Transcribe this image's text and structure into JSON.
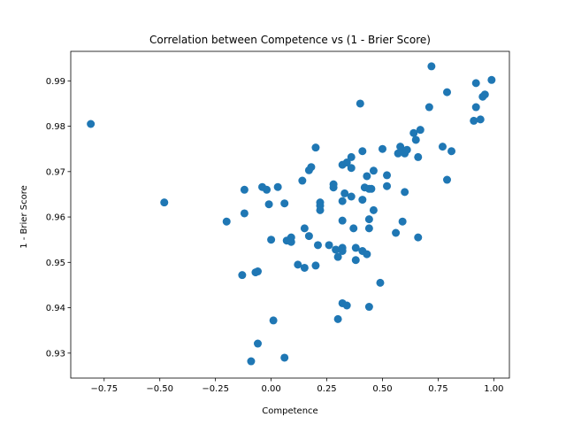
{
  "chart_data": {
    "type": "scatter",
    "title": "Correlation between Competence vs (1 - Brier Score)",
    "xlabel": "Competence",
    "ylabel": "1 - Brier Score",
    "xlim": [
      -0.9,
      1.07
    ],
    "ylim": [
      0.9245,
      0.9965
    ],
    "xticks": [
      -0.75,
      -0.5,
      -0.25,
      0.0,
      0.25,
      0.5,
      0.75,
      1.0
    ],
    "xtick_labels": [
      "−0.75",
      "−0.50",
      "−0.25",
      "0.00",
      "0.25",
      "0.50",
      "0.75",
      "1.00"
    ],
    "yticks": [
      0.93,
      0.94,
      0.95,
      0.96,
      0.97,
      0.98,
      0.99
    ],
    "ytick_labels": [
      "0.93",
      "0.94",
      "0.95",
      "0.96",
      "0.97",
      "0.98",
      "0.99"
    ],
    "grid": false,
    "marker_color": "#1f77b4",
    "series": [
      {
        "points": [
          [
            -0.81,
            0.9805
          ],
          [
            -0.48,
            0.9632
          ],
          [
            -0.2,
            0.959
          ],
          [
            -0.12,
            0.9608
          ],
          [
            -0.12,
            0.966
          ],
          [
            -0.13,
            0.9472
          ],
          [
            -0.07,
            0.9478
          ],
          [
            -0.06,
            0.948
          ],
          [
            -0.09,
            0.9282
          ],
          [
            -0.06,
            0.9321
          ],
          [
            -0.04,
            0.9666
          ],
          [
            -0.02,
            0.966
          ],
          [
            0.03,
            0.9666
          ],
          [
            0.06,
            0.963
          ],
          [
            -0.01,
            0.9628
          ],
          [
            0.0,
            0.955
          ],
          [
            0.01,
            0.9372
          ],
          [
            0.06,
            0.929
          ],
          [
            0.07,
            0.9548
          ],
          [
            0.09,
            0.9555
          ],
          [
            0.09,
            0.9545
          ],
          [
            0.12,
            0.9495
          ],
          [
            0.15,
            0.9488
          ],
          [
            0.14,
            0.968
          ],
          [
            0.15,
            0.9575
          ],
          [
            0.17,
            0.9703
          ],
          [
            0.18,
            0.971
          ],
          [
            0.2,
            0.9753
          ],
          [
            0.17,
            0.9558
          ],
          [
            0.2,
            0.9493
          ],
          [
            0.21,
            0.9538
          ],
          [
            0.22,
            0.9632
          ],
          [
            0.22,
            0.9625
          ],
          [
            0.22,
            0.9615
          ],
          [
            0.26,
            0.9538
          ],
          [
            0.28,
            0.9665
          ],
          [
            0.28,
            0.9672
          ],
          [
            0.3,
            0.9512
          ],
          [
            0.29,
            0.9528
          ],
          [
            0.3,
            0.9375
          ],
          [
            0.32,
            0.9715
          ],
          [
            0.34,
            0.972
          ],
          [
            0.36,
            0.9732
          ],
          [
            0.36,
            0.9708
          ],
          [
            0.33,
            0.9652
          ],
          [
            0.32,
            0.9635
          ],
          [
            0.32,
            0.9592
          ],
          [
            0.32,
            0.9532
          ],
          [
            0.32,
            0.9525
          ],
          [
            0.32,
            0.941
          ],
          [
            0.34,
            0.9405
          ],
          [
            0.36,
            0.9645
          ],
          [
            0.37,
            0.9575
          ],
          [
            0.38,
            0.9532
          ],
          [
            0.38,
            0.9505
          ],
          [
            0.4,
            0.985
          ],
          [
            0.41,
            0.9745
          ],
          [
            0.41,
            0.9638
          ],
          [
            0.42,
            0.9665
          ],
          [
            0.43,
            0.969
          ],
          [
            0.44,
            0.9662
          ],
          [
            0.45,
            0.9662
          ],
          [
            0.46,
            0.9702
          ],
          [
            0.46,
            0.9615
          ],
          [
            0.44,
            0.9595
          ],
          [
            0.44,
            0.9575
          ],
          [
            0.41,
            0.9525
          ],
          [
            0.43,
            0.9518
          ],
          [
            0.44,
            0.9402
          ],
          [
            0.49,
            0.9455
          ],
          [
            0.5,
            0.975
          ],
          [
            0.52,
            0.9692
          ],
          [
            0.52,
            0.9668
          ],
          [
            0.56,
            0.9565
          ],
          [
            0.57,
            0.974
          ],
          [
            0.58,
            0.9755
          ],
          [
            0.59,
            0.9745
          ],
          [
            0.6,
            0.974
          ],
          [
            0.61,
            0.9748
          ],
          [
            0.6,
            0.9655
          ],
          [
            0.59,
            0.959
          ],
          [
            0.64,
            0.9785
          ],
          [
            0.65,
            0.977
          ],
          [
            0.67,
            0.9792
          ],
          [
            0.66,
            0.9732
          ],
          [
            0.66,
            0.9555
          ],
          [
            0.71,
            0.9842
          ],
          [
            0.72,
            0.9932
          ],
          [
            0.77,
            0.9755
          ],
          [
            0.79,
            0.9875
          ],
          [
            0.79,
            0.9682
          ],
          [
            0.81,
            0.9745
          ],
          [
            0.91,
            0.9812
          ],
          [
            0.92,
            0.9895
          ],
          [
            0.92,
            0.9842
          ],
          [
            0.94,
            0.9815
          ],
          [
            0.95,
            0.9865
          ],
          [
            0.96,
            0.987
          ],
          [
            0.99,
            0.9902
          ]
        ]
      }
    ]
  }
}
